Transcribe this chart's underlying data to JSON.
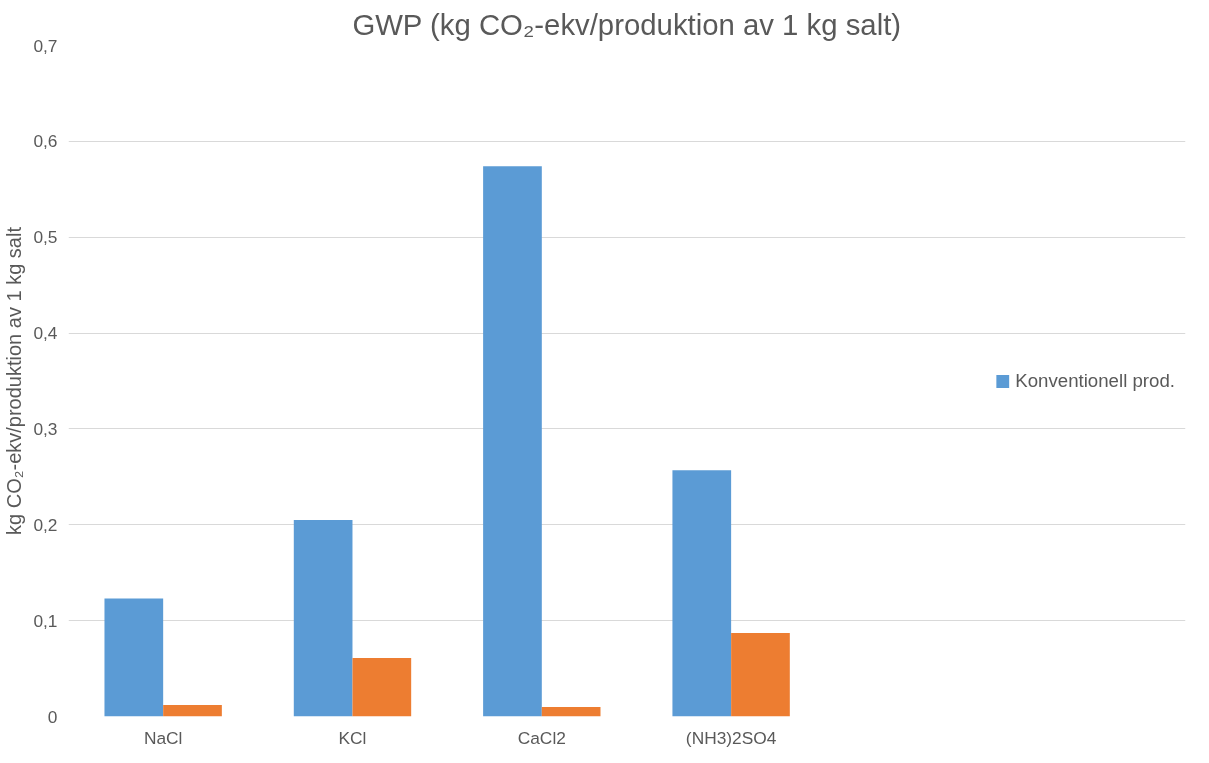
{
  "chart_data": {
    "type": "bar",
    "title": "GWP (kg CO₂-ekv/produktion av 1 kg salt)",
    "ylabel": "kg CO₂-ekv/produktion av 1 kg salt",
    "categories": [
      "NaCl",
      "KCl",
      "CaCl2",
      "(NH3)2SO4"
    ],
    "series": [
      {
        "name": "Konventionell prod.",
        "color": "#5b9bd5",
        "values": [
          0.123,
          0.205,
          0.574,
          0.257
        ]
      },
      {
        "color": "#ed7d31",
        "values": [
          0.012,
          0.061,
          0.01,
          0.087
        ]
      }
    ],
    "ylim": [
      0,
      0.7
    ],
    "yticks": [
      0,
      {
        "value": 0.1,
        "label": "0,1"
      },
      {
        "value": 0.2,
        "label": "0,2"
      },
      {
        "value": 0.3,
        "label": "0,3"
      },
      {
        "value": 0.4,
        "label": "0,4"
      },
      {
        "value": 0.5,
        "label": "0,5"
      },
      {
        "value": 0.6,
        "label": "0,6"
      },
      {
        "value": 0.7,
        "label": "0,7"
      }
    ],
    "grid": "y",
    "legend": "right"
  }
}
